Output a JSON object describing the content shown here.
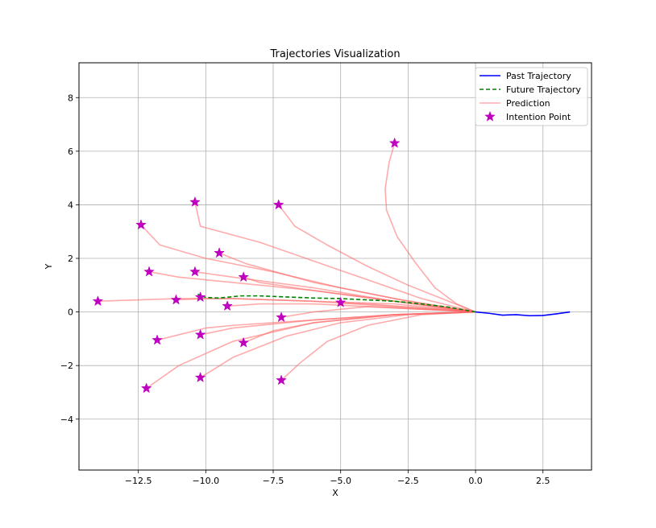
{
  "chart_data": {
    "type": "line",
    "title": "Trajectories Visualization",
    "xlabel": "X",
    "ylabel": "Y",
    "xlim": [
      -14.7,
      4.3
    ],
    "ylim": [
      -5.9,
      9.3
    ],
    "xticks": [
      -12.5,
      -10.0,
      -7.5,
      -5.0,
      -2.5,
      0.0,
      2.5
    ],
    "xtick_labels": [
      "−12.5",
      "−10.0",
      "−7.5",
      "−5.0",
      "−2.5",
      "0.0",
      "2.5"
    ],
    "yticks": [
      -4,
      -2,
      0,
      2,
      4,
      6,
      8
    ],
    "ytick_labels": [
      "−4",
      "−2",
      "0",
      "2",
      "4",
      "6",
      "8"
    ],
    "grid": true,
    "legend_position": "upper right",
    "series": [
      {
        "name": "Past Trajectory",
        "color": "#0000ff",
        "style": "solid",
        "x": [
          0.0,
          0.5,
          1.0,
          1.5,
          2.0,
          2.5,
          3.0,
          3.5
        ],
        "y": [
          0.0,
          -0.05,
          -0.12,
          -0.1,
          -0.14,
          -0.13,
          -0.07,
          0.0
        ]
      },
      {
        "name": "Future Trajectory",
        "color": "#008000",
        "style": "dashed",
        "x": [
          0.0,
          -1.0,
          -2.0,
          -3.0,
          -4.0,
          -5.0,
          -6.0,
          -7.0,
          -8.0,
          -8.7,
          -9.5,
          -10.0,
          -10.3
        ],
        "y": [
          0.0,
          0.18,
          0.3,
          0.4,
          0.45,
          0.5,
          0.52,
          0.56,
          0.6,
          0.6,
          0.52,
          0.54,
          0.66
        ]
      },
      {
        "name": "Prediction",
        "color": "#ff6666",
        "style": "solid",
        "paths": [
          {
            "x": [
              0.0,
              -0.7,
              -1.5,
              -2.2,
              -2.9,
              -3.3,
              -3.35,
              -3.2,
              -3.0
            ],
            "y": [
              0.0,
              0.3,
              0.9,
              1.8,
              2.8,
              3.8,
              4.6,
              5.6,
              6.3
            ]
          },
          {
            "x": [
              0.0,
              -1.0,
              -2.5,
              -4.0,
              -5.5,
              -6.7,
              -7.3
            ],
            "y": [
              0.0,
              0.4,
              1.0,
              1.7,
              2.5,
              3.2,
              4.0
            ]
          },
          {
            "x": [
              0.0,
              -2.0,
              -4.0,
              -6.0,
              -8.0,
              -10.2,
              -10.4
            ],
            "y": [
              0.0,
              0.5,
              1.2,
              1.9,
              2.6,
              3.2,
              4.1
            ]
          },
          {
            "x": [
              0.0,
              -2.5,
              -5.0,
              -7.5,
              -10.0,
              -11.7,
              -12.4
            ],
            "y": [
              0.0,
              0.4,
              0.9,
              1.5,
              2.0,
              2.5,
              3.25
            ]
          },
          {
            "x": [
              0.0,
              -3.0,
              -6.0,
              -8.5,
              -9.5
            ],
            "y": [
              0.0,
              0.5,
              1.1,
              1.8,
              2.2
            ]
          },
          {
            "x": [
              0.0,
              -3.0,
              -6.0,
              -9.0,
              -10.4
            ],
            "y": [
              0.0,
              0.4,
              0.9,
              1.3,
              1.5
            ]
          },
          {
            "x": [
              0.0,
              -3.0,
              -6.0,
              -8.0,
              -8.6
            ],
            "y": [
              0.0,
              0.4,
              0.8,
              1.1,
              1.3
            ]
          },
          {
            "x": [
              0.0,
              -3.0,
              -6.0,
              -9.0,
              -11.0,
              -12.1
            ],
            "y": [
              0.0,
              0.4,
              0.8,
              1.1,
              1.3,
              1.5
            ]
          },
          {
            "x": [
              0.0,
              -3.0,
              -6.0,
              -9.0,
              -11.0,
              -14.0
            ],
            "y": [
              0.0,
              0.3,
              0.4,
              0.5,
              0.5,
              0.4
            ]
          },
          {
            "x": [
              0.0,
              -3.0,
              -6.0,
              -9.0,
              -10.0,
              -11.1
            ],
            "y": [
              0.0,
              0.2,
              0.4,
              0.5,
              0.5,
              0.45
            ]
          },
          {
            "x": [
              0.0,
              -2.0,
              -4.0,
              -5.0
            ],
            "y": [
              0.0,
              0.15,
              0.3,
              0.35
            ]
          },
          {
            "x": [
              0.0,
              -3.0,
              -6.0,
              -8.0,
              -9.2
            ],
            "y": [
              0.0,
              0.15,
              0.3,
              0.3,
              0.22
            ]
          },
          {
            "x": [
              0.0,
              -2.0,
              -4.0,
              -6.0,
              -7.2
            ],
            "y": [
              0.0,
              0.1,
              0.2,
              0.0,
              -0.2
            ]
          },
          {
            "x": [
              0.0,
              -3.0,
              -6.0,
              -9.0,
              -10.0,
              -11.8
            ],
            "y": [
              0.0,
              -0.1,
              -0.3,
              -0.5,
              -0.6,
              -1.05
            ]
          },
          {
            "x": [
              0.0,
              -3.0,
              -6.0,
              -9.0,
              -10.2
            ],
            "y": [
              0.0,
              -0.1,
              -0.3,
              -0.6,
              -0.85
            ]
          },
          {
            "x": [
              0.0,
              -3.0,
              -6.0,
              -7.5,
              -8.6
            ],
            "y": [
              0.0,
              -0.1,
              -0.4,
              -0.7,
              -1.15
            ]
          },
          {
            "x": [
              0.0,
              -2.0,
              -4.0,
              -5.5,
              -6.5,
              -7.2
            ],
            "y": [
              0.0,
              -0.1,
              -0.5,
              -1.1,
              -1.9,
              -2.55
            ]
          },
          {
            "x": [
              0.0,
              -2.5,
              -5.0,
              -7.0,
              -9.0,
              -10.2
            ],
            "y": [
              0.0,
              -0.1,
              -0.4,
              -0.9,
              -1.7,
              -2.45
            ]
          },
          {
            "x": [
              0.0,
              -3.0,
              -6.0,
              -9.0,
              -11.0,
              -12.2
            ],
            "y": [
              0.0,
              -0.1,
              -0.4,
              -1.1,
              -2.0,
              -2.85
            ]
          }
        ]
      },
      {
        "name": "Intention Point",
        "color": "#bf00bf",
        "style": "marker",
        "x": [
          -3.0,
          -7.3,
          -10.4,
          -12.4,
          -9.5,
          -10.4,
          -8.6,
          -12.1,
          -14.0,
          -11.1,
          -10.2,
          -5.0,
          -9.2,
          -7.2,
          -11.8,
          -10.2,
          -8.6,
          -7.2,
          -10.2,
          -12.2
        ],
        "y": [
          6.3,
          4.0,
          4.1,
          3.25,
          2.2,
          1.5,
          1.3,
          1.5,
          0.4,
          0.45,
          0.55,
          0.35,
          0.22,
          -0.2,
          -1.05,
          -0.85,
          -1.15,
          -2.55,
          -2.45,
          -2.85
        ]
      }
    ]
  }
}
